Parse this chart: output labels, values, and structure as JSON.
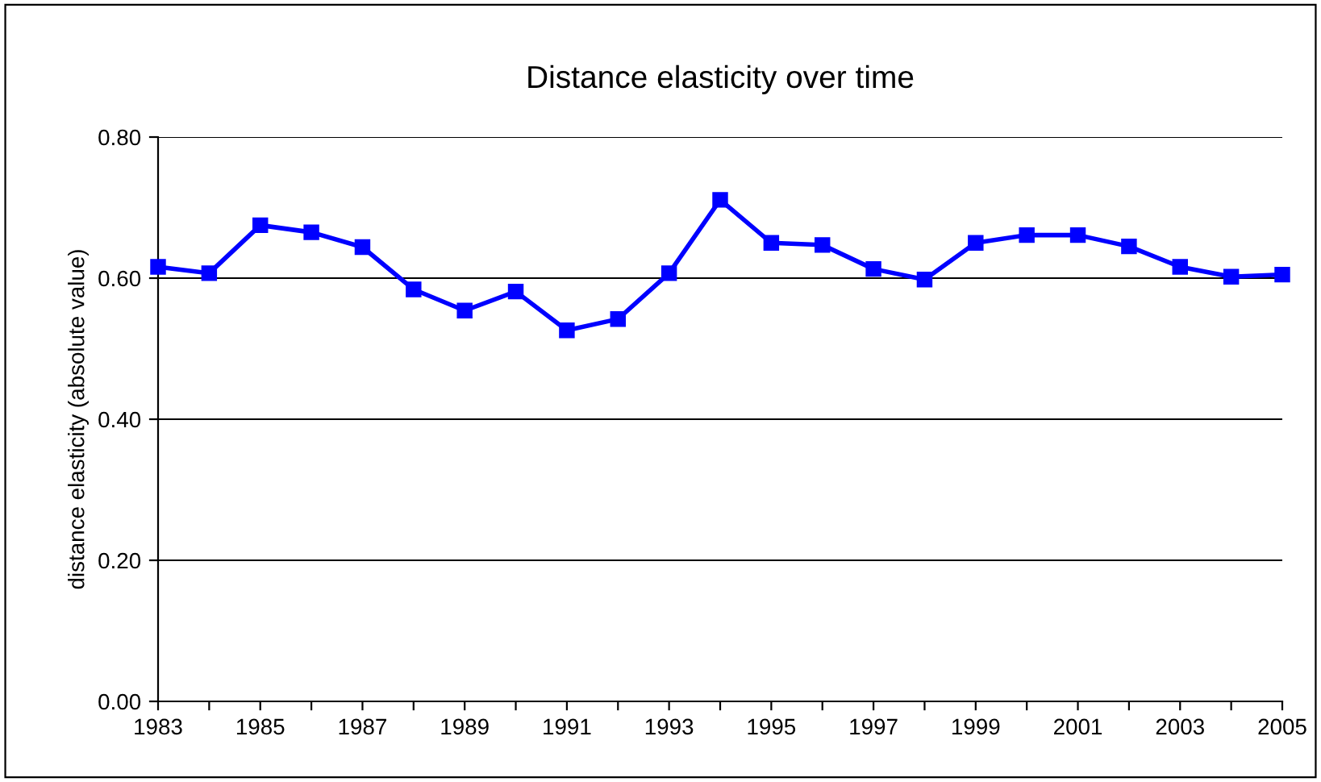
{
  "chart_data": {
    "type": "line",
    "title": "Distance elasticity over time",
    "ylabel": "distance elasticity (absolute value)",
    "x": [
      1983,
      1984,
      1985,
      1986,
      1987,
      1988,
      1989,
      1990,
      1991,
      1992,
      1993,
      1994,
      1995,
      1996,
      1997,
      1998,
      1999,
      2000,
      2001,
      2002,
      2003,
      2004,
      2005
    ],
    "series": [
      {
        "color": "#0000ff",
        "values": [
          0.616,
          0.607,
          0.675,
          0.665,
          0.644,
          0.584,
          0.554,
          0.581,
          0.526,
          0.542,
          0.607,
          0.711,
          0.65,
          0.647,
          0.613,
          0.598,
          0.65,
          0.661,
          0.661,
          0.645,
          0.616,
          0.602,
          0.605
        ]
      }
    ],
    "xlim": [
      1983,
      2005
    ],
    "xticks": [
      1983,
      {
        "value": 1984,
        "label": null
      },
      1985,
      {
        "value": 1986,
        "label": null
      },
      1987,
      {
        "value": 1988,
        "label": null
      },
      1989,
      {
        "value": 1990,
        "label": null
      },
      1991,
      {
        "value": 1992,
        "label": null
      },
      1993,
      {
        "value": 1994,
        "label": null
      },
      1995,
      {
        "value": 1996,
        "label": null
      },
      1997,
      {
        "value": 1998,
        "label": null
      },
      1999,
      {
        "value": 2000,
        "label": null
      },
      2001,
      {
        "value": 2002,
        "label": null
      },
      2003,
      {
        "value": 2004,
        "label": null
      },
      2005
    ],
    "ylim": [
      0,
      0.8
    ],
    "yticks": [
      {
        "value": 0,
        "label": "0.00"
      },
      {
        "value": 0.2,
        "label": "0.20"
      },
      {
        "value": 0.4,
        "label": "0.40"
      },
      {
        "value": 0.6,
        "label": "0.60"
      },
      {
        "value": 0.8,
        "label": "0.80"
      }
    ],
    "grid": "y",
    "marker": "square",
    "line_style": "solid",
    "legend": false
  }
}
